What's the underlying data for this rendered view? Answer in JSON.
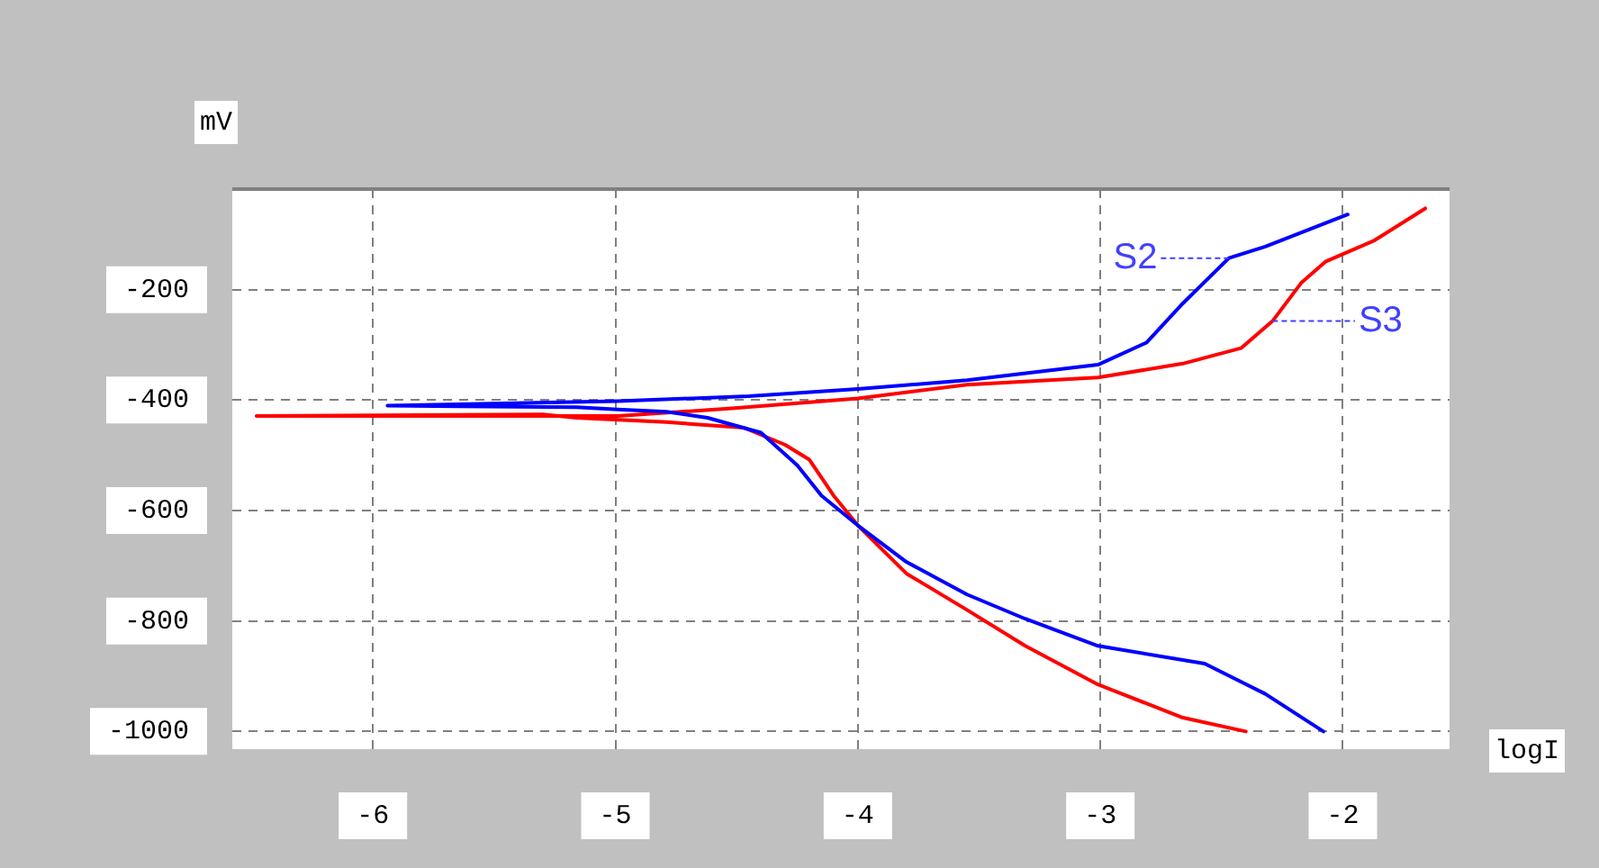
{
  "chart_data": {
    "type": "line",
    "xlabel": "logI",
    "ylabel": "mV",
    "xlim": [
      -6.58,
      -1.56
    ],
    "ylim": [
      -1032,
      -18
    ],
    "xticks": [
      -6,
      -5,
      -4,
      -3,
      -2
    ],
    "yticks": [
      -200,
      -400,
      -600,
      -800,
      -1000
    ],
    "grid": true,
    "legend": false,
    "marker": "none",
    "line_style": "solid",
    "series": [
      {
        "name": "S2",
        "color": "#0000ff",
        "x": [
          -2.08,
          -2.32,
          -2.57,
          -3.01,
          -3.31,
          -3.55,
          -3.8,
          -4.0,
          -4.15,
          -4.25,
          -4.4,
          -4.62,
          -4.79,
          -4.99,
          -5.16,
          -5.94,
          -4.99,
          -4.45,
          -4.0,
          -3.55,
          -3.01,
          -2.81,
          -2.66,
          -2.47,
          -2.32,
          -1.98
        ],
        "values": [
          -1000,
          -932,
          -877,
          -845,
          -796,
          -752,
          -693,
          -627,
          -573,
          -518,
          -459,
          -432,
          -421,
          -417,
          -413,
          -410,
          -402,
          -393,
          -380,
          -364,
          -336,
          -296,
          -225,
          -143,
          -122,
          -64
        ]
      },
      {
        "name": "S3",
        "color": "#ff0000",
        "x": [
          -2.4,
          -2.66,
          -3.01,
          -3.31,
          -3.55,
          -3.8,
          -4.0,
          -4.1,
          -4.2,
          -4.3,
          -4.47,
          -4.79,
          -5.16,
          -5.3,
          -6.48,
          -4.99,
          -4.52,
          -4.0,
          -3.55,
          -3.01,
          -2.66,
          -2.42,
          -2.29,
          -2.17,
          -2.07,
          -1.87,
          -1.66
        ],
        "values": [
          -1000,
          -975,
          -915,
          -845,
          -780,
          -714,
          -627,
          -573,
          -508,
          -481,
          -450,
          -440,
          -432,
          -426,
          -429,
          -429,
          -415,
          -397,
          -372,
          -359,
          -334,
          -306,
          -257,
          -187,
          -149,
          -111,
          -53
        ]
      }
    ]
  }
}
